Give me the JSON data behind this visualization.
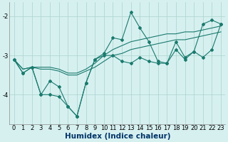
{
  "xlabel": "Humidex (Indice chaleur)",
  "bg_color": "#d6f0f0",
  "grid_color": "#b0d8d0",
  "line_color": "#1a7a6e",
  "x": [
    0,
    1,
    2,
    3,
    4,
    5,
    6,
    7,
    8,
    9,
    10,
    11,
    12,
    13,
    14,
    15,
    16,
    17,
    18,
    19,
    20,
    21,
    22,
    23
  ],
  "line1_jagged": [
    -3.1,
    -3.45,
    -3.3,
    -4.0,
    -3.65,
    -3.8,
    -4.3,
    -4.55,
    -3.7,
    -3.1,
    -2.95,
    -2.55,
    -2.6,
    -1.9,
    -2.3,
    -2.65,
    -3.15,
    -3.2,
    -2.65,
    -3.05,
    -2.9,
    -2.2,
    -2.1,
    -2.2
  ],
  "line2_jagged": [
    -3.1,
    -3.45,
    -3.3,
    -4.0,
    -4.0,
    -4.05,
    -4.3,
    -4.55,
    -3.7,
    -3.1,
    -3.0,
    -3.0,
    -3.15,
    -3.2,
    -3.05,
    -3.15,
    -3.2,
    -3.2,
    -2.85,
    -3.1,
    -2.9,
    -3.05,
    -2.85,
    -2.2
  ],
  "line3_smooth": [
    -3.1,
    -3.35,
    -3.3,
    -3.35,
    -3.35,
    -3.4,
    -3.5,
    -3.5,
    -3.4,
    -3.3,
    -3.15,
    -3.0,
    -2.95,
    -2.85,
    -2.8,
    -2.75,
    -2.7,
    -2.65,
    -2.6,
    -2.6,
    -2.55,
    -2.5,
    -2.45,
    -2.4
  ],
  "line4_smooth": [
    -3.1,
    -3.35,
    -3.3,
    -3.3,
    -3.3,
    -3.35,
    -3.45,
    -3.45,
    -3.35,
    -3.2,
    -3.0,
    -2.85,
    -2.75,
    -2.65,
    -2.6,
    -2.55,
    -2.5,
    -2.45,
    -2.45,
    -2.4,
    -2.4,
    -2.35,
    -2.3,
    -2.25
  ],
  "ylim": [
    -4.75,
    -1.65
  ],
  "yticks": [
    -4.0,
    -3.0,
    -2.0
  ],
  "xticks": [
    0,
    1,
    2,
    3,
    4,
    5,
    6,
    7,
    8,
    9,
    10,
    11,
    12,
    13,
    14,
    15,
    16,
    17,
    18,
    19,
    20,
    21,
    22,
    23
  ],
  "markersize": 2.0,
  "linewidth": 0.8,
  "xlabel_fontsize": 7.5,
  "tick_fontsize": 6.0
}
